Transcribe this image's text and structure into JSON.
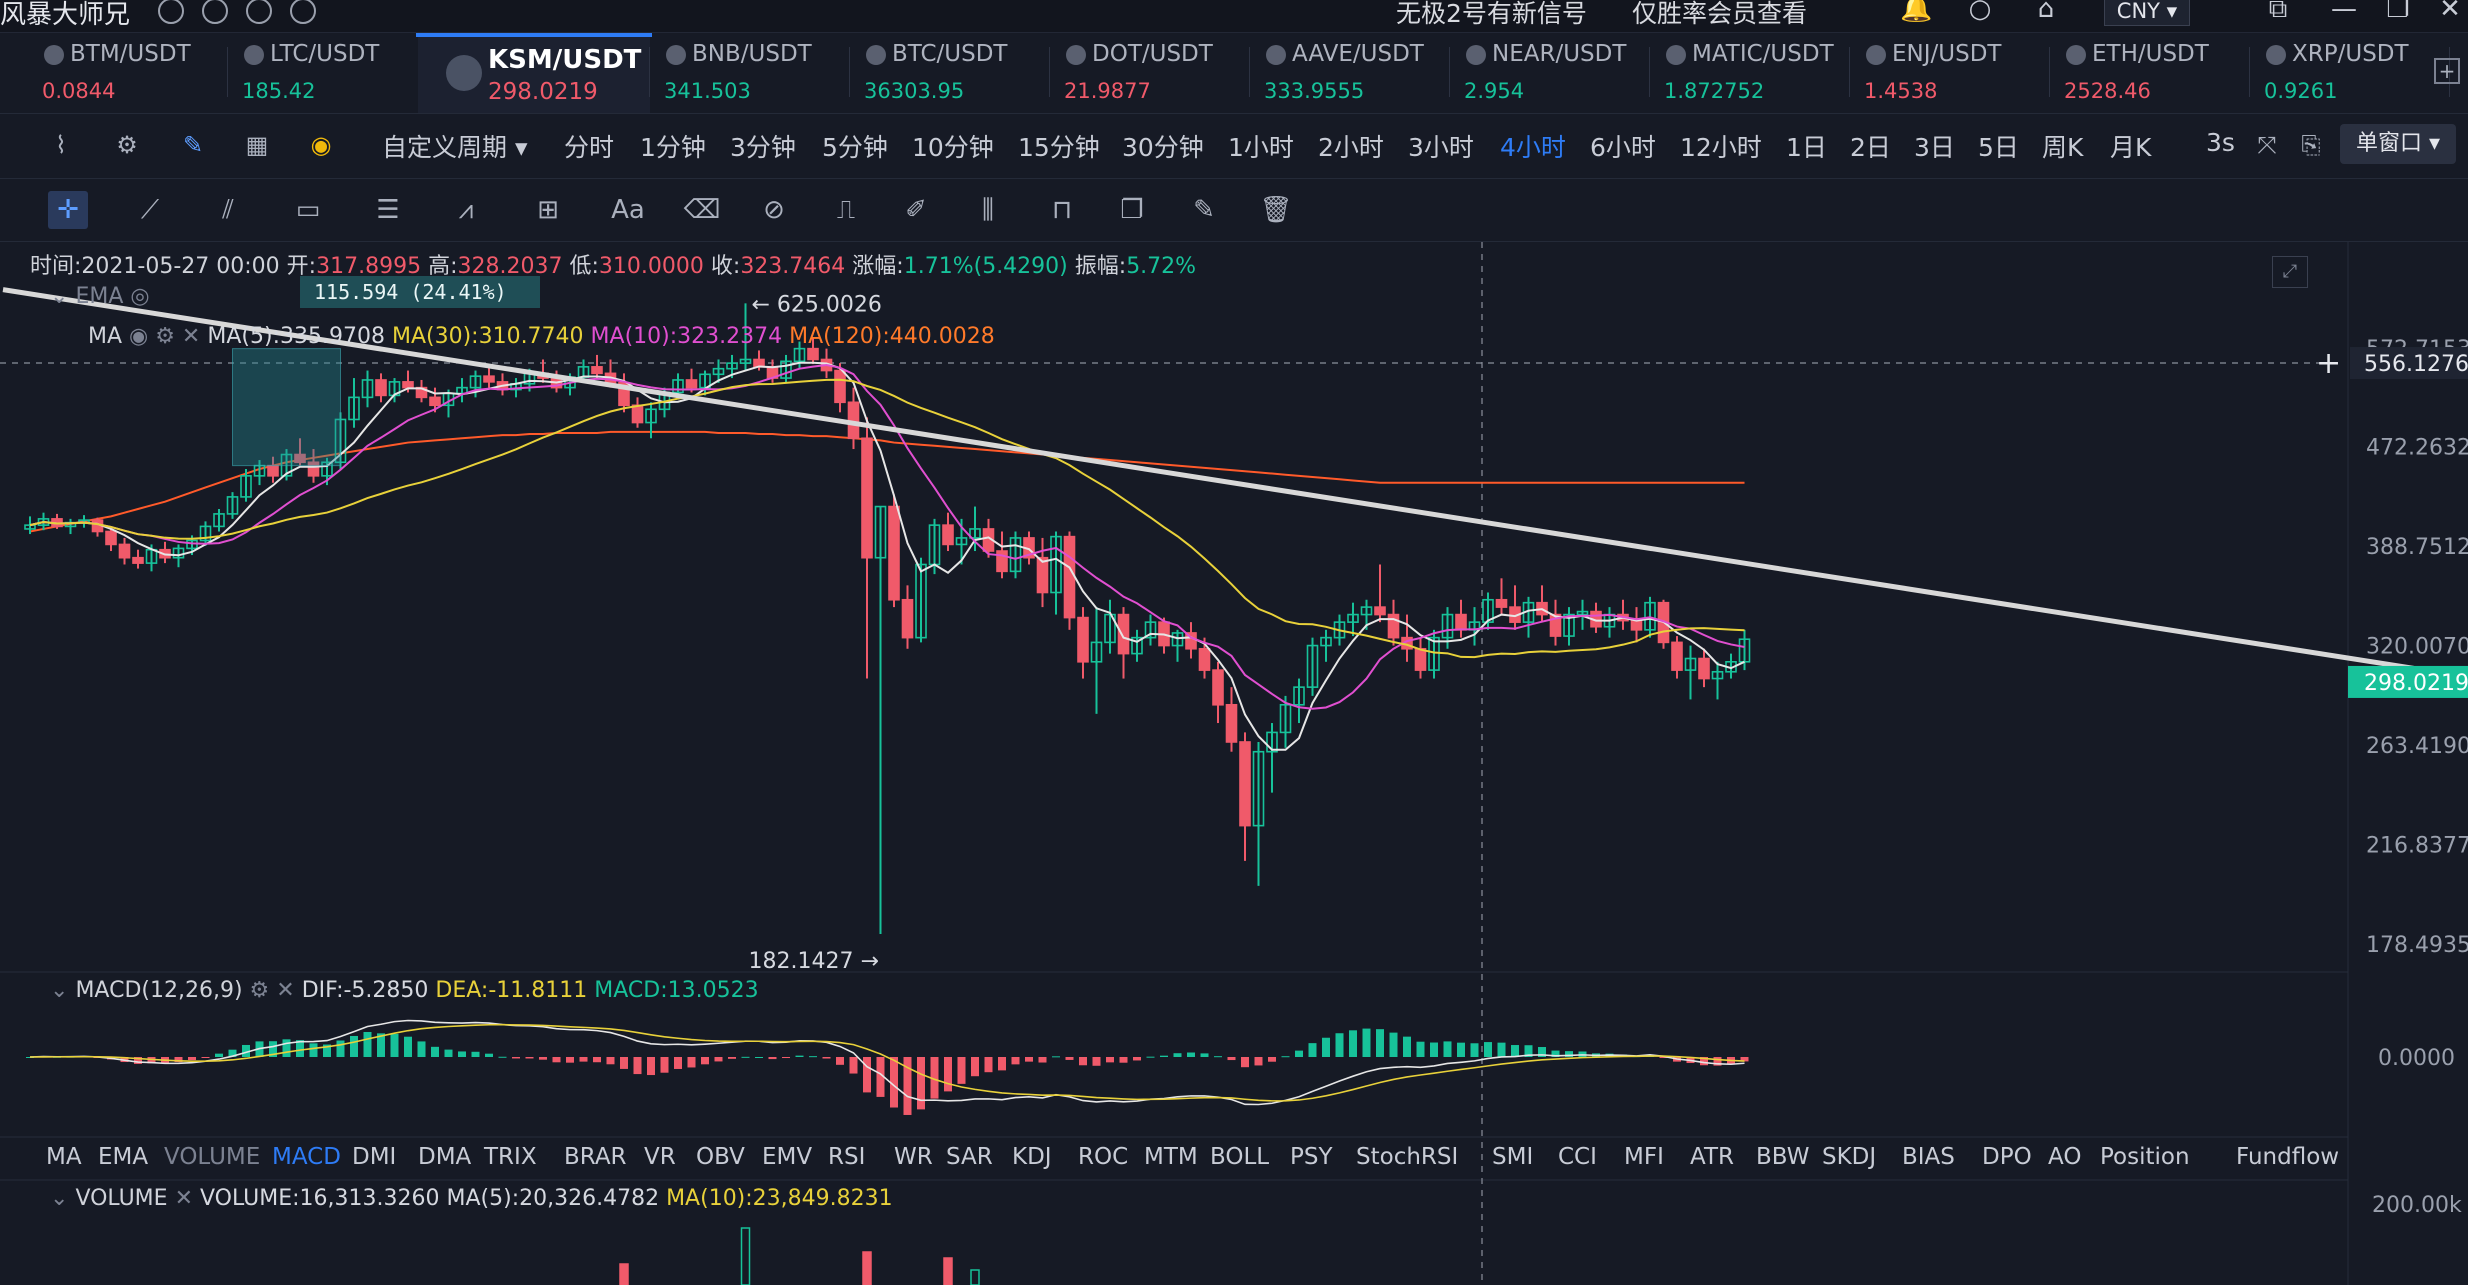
{
  "title_bar": {
    "app_title": "风暴大师兄",
    "promo_signal": "无极2号有新信号",
    "promo_member": "仅胜率会员查看",
    "currency": "CNY ▾"
  },
  "tickers": [
    {
      "symbol": "BTM/USDT",
      "price": "0.0844",
      "color": "#f05a6a"
    },
    {
      "symbol": "LTC/USDT",
      "price": "185.42",
      "color": "#17c29a"
    },
    {
      "symbol": "KSM/USDT",
      "price": "298.0219",
      "color": "#f05a6a",
      "active": true
    },
    {
      "symbol": "BNB/USDT",
      "price": "341.503",
      "color": "#17c29a"
    },
    {
      "symbol": "BTC/USDT",
      "price": "36303.95",
      "color": "#17c29a"
    },
    {
      "symbol": "DOT/USDT",
      "price": "21.9877",
      "color": "#f05a6a"
    },
    {
      "symbol": "AAVE/USDT",
      "price": "333.9555",
      "color": "#17c29a"
    },
    {
      "symbol": "NEAR/USDT",
      "price": "2.954",
      "color": "#17c29a"
    },
    {
      "symbol": "MATIC/USDT",
      "price": "1.872752",
      "color": "#17c29a"
    },
    {
      "symbol": "ENJ/USDT",
      "price": "1.4538",
      "color": "#f05a6a"
    },
    {
      "symbol": "ETH/USDT",
      "price": "2528.46",
      "color": "#f05a6a"
    },
    {
      "symbol": "XRP/USDT",
      "price": "0.9261",
      "color": "#17c29a"
    }
  ],
  "periods": {
    "custom": "自定义周期 ▾",
    "items": [
      "分时",
      "1分钟",
      "3分钟",
      "5分钟",
      "10分钟",
      "15分钟",
      "30分钟",
      "1小时",
      "2小时",
      "3小时",
      "4小时",
      "6小时",
      "12小时",
      "1日",
      "2日",
      "3日",
      "5日",
      "周K",
      "月K"
    ],
    "active": "4小时",
    "interval": "3s",
    "window_mode": "单窗口 ▾"
  },
  "ohlc_info": {
    "time_label": "时间:",
    "time": "2021-05-27 00:00",
    "open_label": "开:",
    "open": "317.8995",
    "high_label": "高:",
    "high": "328.2037",
    "low_label": "低:",
    "low": "310.0000",
    "close_label": "收:",
    "close": "323.7464",
    "change_label": "涨幅:",
    "change": "1.71%(5.4290)",
    "amp_label": "振幅:",
    "amp": "5.72%"
  },
  "overlays": {
    "ema_label": "EMA",
    "ma_label": "MA",
    "ma5": "MA(5):335.9708",
    "ma30": "MA(30):310.7740",
    "ma10": "MA(10):323.2374",
    "ma120": "MA(120):440.0028"
  },
  "measure_box": "115.594 (24.41%)",
  "macd_info": {
    "label": "MACD(12,26,9)",
    "dif": "DIF:-5.2850",
    "dea": "DEA:-11.8111",
    "macd": "MACD:13.0523"
  },
  "volume_info": {
    "label": "VOLUME",
    "vol": "VOLUME:16,313.3260",
    "ma5": "MA(5):20,326.4782",
    "ma10": "MA(10):23,849.8231"
  },
  "indicator_tabs": [
    "MA",
    "EMA",
    "VOLUME",
    "MACD",
    "DMI",
    "DMA",
    "TRIX",
    "BRAR",
    "VR",
    "OBV",
    "EMV",
    "RSI",
    "WR",
    "SAR",
    "KDJ",
    "ROC",
    "MTM",
    "BOLL",
    "PSY",
    "StochRSI",
    "SMI",
    "CCI",
    "MFI",
    "ATR",
    "BBW",
    "SKDJ",
    "BIAS",
    "DPO",
    "AO",
    "Position",
    "Fundflow"
  ],
  "indicator_active": "MACD",
  "chart_data": {
    "type": "candlestick",
    "symbol": "KSM/USDT",
    "interval": "4小时",
    "price_axis": [
      "572.7153",
      "472.2632",
      "388.7512",
      "320.0070",
      "263.4190",
      "216.8377",
      "178.4935"
    ],
    "crosshair_price": "556.1276",
    "last_price": "298.0219",
    "high_marker": "← 625.0026",
    "low_marker": "182.1427 →",
    "macd_axis": [
      "0.0000"
    ],
    "volume_axis": [
      "200.00k"
    ],
    "colors": {
      "up": "#17c29a",
      "down": "#f05a6a",
      "ma5": "#e6e6e6",
      "ma10": "#e04fd0",
      "ma30": "#e8d13a",
      "ma120": "#ff5a2a",
      "trendline": "#d8d8d8"
    },
    "candles": [
      [
        402,
        412,
        398,
        405
      ],
      [
        405,
        415,
        401,
        410
      ],
      [
        410,
        414,
        402,
        404
      ],
      [
        404,
        410,
        398,
        407
      ],
      [
        407,
        413,
        403,
        409
      ],
      [
        409,
        411,
        396,
        400
      ],
      [
        400,
        404,
        385,
        390
      ],
      [
        390,
        395,
        375,
        380
      ],
      [
        380,
        386,
        372,
        376
      ],
      [
        376,
        390,
        370,
        386
      ],
      [
        386,
        392,
        376,
        380
      ],
      [
        380,
        390,
        373,
        387
      ],
      [
        387,
        397,
        382,
        393
      ],
      [
        393,
        408,
        389,
        404
      ],
      [
        404,
        418,
        400,
        414
      ],
      [
        414,
        432,
        410,
        428
      ],
      [
        428,
        452,
        424,
        446
      ],
      [
        446,
        460,
        438,
        455
      ],
      [
        455,
        463,
        440,
        446
      ],
      [
        446,
        470,
        442,
        465
      ],
      [
        465,
        480,
        455,
        458
      ],
      [
        458,
        470,
        440,
        446
      ],
      [
        446,
        462,
        438,
        458
      ],
      [
        458,
        505,
        452,
        498
      ],
      [
        498,
        540,
        490,
        520
      ],
      [
        520,
        548,
        510,
        538
      ],
      [
        538,
        545,
        515,
        522
      ],
      [
        522,
        540,
        515,
        536
      ],
      [
        536,
        548,
        525,
        530
      ],
      [
        530,
        538,
        515,
        520
      ],
      [
        520,
        530,
        505,
        512
      ],
      [
        512,
        528,
        500,
        524
      ],
      [
        524,
        540,
        515,
        530
      ],
      [
        530,
        548,
        520,
        542
      ],
      [
        542,
        552,
        530,
        536
      ],
      [
        536,
        545,
        522,
        528
      ],
      [
        528,
        540,
        520,
        534
      ],
      [
        534,
        550,
        526,
        545
      ],
      [
        545,
        560,
        535,
        540
      ],
      [
        540,
        548,
        525,
        530
      ],
      [
        530,
        545,
        522,
        541
      ],
      [
        541,
        560,
        535,
        552
      ],
      [
        552,
        565,
        540,
        545
      ],
      [
        545,
        560,
        530,
        535
      ],
      [
        535,
        545,
        505,
        512
      ],
      [
        512,
        520,
        490,
        495
      ],
      [
        495,
        515,
        480,
        508
      ],
      [
        508,
        530,
        500,
        525
      ],
      [
        525,
        545,
        518,
        538
      ],
      [
        538,
        550,
        525,
        530
      ],
      [
        530,
        548,
        522,
        544
      ],
      [
        544,
        560,
        535,
        550
      ],
      [
        550,
        565,
        540,
        556
      ],
      [
        556,
        625,
        548,
        560
      ],
      [
        560,
        570,
        548,
        552
      ],
      [
        552,
        560,
        535,
        540
      ],
      [
        540,
        565,
        535,
        558
      ],
      [
        558,
        580,
        550,
        572
      ],
      [
        572,
        585,
        555,
        560
      ],
      [
        560,
        572,
        540,
        548
      ],
      [
        548,
        556,
        505,
        515
      ],
      [
        515,
        530,
        470,
        480
      ],
      [
        480,
        500,
        300,
        380
      ],
      [
        380,
        420,
        182,
        420
      ],
      [
        420,
        430,
        345,
        350
      ],
      [
        350,
        360,
        318,
        325
      ],
      [
        325,
        380,
        322,
        375
      ],
      [
        375,
        410,
        368,
        405
      ],
      [
        405,
        415,
        385,
        390
      ],
      [
        390,
        410,
        375,
        395
      ],
      [
        395,
        420,
        385,
        402
      ],
      [
        402,
        410,
        380,
        385
      ],
      [
        385,
        400,
        365,
        370
      ],
      [
        370,
        400,
        365,
        395
      ],
      [
        395,
        400,
        375,
        380
      ],
      [
        380,
        395,
        345,
        355
      ],
      [
        355,
        400,
        340,
        396
      ],
      [
        396,
        400,
        330,
        338
      ],
      [
        338,
        345,
        300,
        310
      ],
      [
        310,
        345,
        280,
        322
      ],
      [
        322,
        350,
        315,
        340
      ],
      [
        340,
        345,
        300,
        315
      ],
      [
        315,
        330,
        310,
        325
      ],
      [
        325,
        340,
        320,
        335
      ],
      [
        335,
        338,
        315,
        320
      ],
      [
        320,
        330,
        310,
        328
      ],
      [
        328,
        335,
        312,
        318
      ],
      [
        318,
        325,
        300,
        305
      ],
      [
        305,
        310,
        275,
        285
      ],
      [
        285,
        295,
        260,
        265
      ],
      [
        265,
        270,
        210,
        225
      ],
      [
        225,
        265,
        200,
        260
      ],
      [
        260,
        275,
        240,
        270
      ],
      [
        270,
        290,
        262,
        285
      ],
      [
        285,
        300,
        275,
        295
      ],
      [
        295,
        325,
        290,
        320
      ],
      [
        320,
        330,
        310,
        325
      ],
      [
        325,
        340,
        320,
        335
      ],
      [
        335,
        348,
        326,
        340
      ],
      [
        340,
        350,
        330,
        345
      ],
      [
        345,
        375,
        335,
        340
      ],
      [
        340,
        350,
        320,
        325
      ],
      [
        325,
        340,
        310,
        318
      ],
      [
        318,
        325,
        300,
        305
      ],
      [
        305,
        330,
        300,
        325
      ],
      [
        325,
        345,
        318,
        340
      ],
      [
        340,
        350,
        325,
        330
      ],
      [
        330,
        345,
        320,
        335
      ],
      [
        335,
        355,
        330,
        350
      ],
      [
        350,
        365,
        340,
        345
      ],
      [
        345,
        360,
        330,
        335
      ],
      [
        335,
        352,
        325,
        348
      ],
      [
        348,
        360,
        335,
        340
      ],
      [
        340,
        350,
        320,
        326
      ],
      [
        326,
        345,
        320,
        340
      ],
      [
        340,
        350,
        330,
        342
      ],
      [
        342,
        348,
        328,
        332
      ],
      [
        332,
        345,
        325,
        340
      ],
      [
        340,
        350,
        330,
        336
      ],
      [
        336,
        345,
        322,
        330
      ],
      [
        330,
        352,
        325,
        348
      ],
      [
        348,
        350,
        318,
        322
      ],
      [
        322,
        326,
        300,
        305
      ],
      [
        305,
        320,
        288,
        312
      ],
      [
        312,
        318,
        295,
        300
      ],
      [
        300,
        310,
        288,
        304
      ],
      [
        304,
        315,
        300,
        310
      ],
      [
        310,
        330,
        305,
        324
      ]
    ],
    "ma120": [
      400,
      402,
      404,
      406,
      408,
      410,
      412,
      415,
      418,
      421,
      424,
      428,
      432,
      436,
      440,
      444,
      448,
      452,
      455,
      458,
      460,
      462,
      464,
      466,
      468,
      470,
      472,
      474,
      476,
      477,
      478,
      479,
      480,
      481,
      482,
      483,
      483,
      484,
      484,
      485,
      485,
      485,
      485,
      486,
      486,
      486,
      486,
      486,
      486,
      486,
      486,
      485,
      485,
      485,
      484,
      484,
      483,
      483,
      482,
      482,
      481,
      480,
      479,
      478,
      476,
      475,
      474,
      473,
      472,
      471,
      470,
      469,
      468,
      467,
      466,
      465,
      464,
      463,
      462,
      461,
      460,
      459,
      458,
      457,
      456,
      455,
      454,
      453,
      452,
      451,
      450,
      449,
      448,
      447,
      446,
      445,
      444,
      443,
      442,
      441,
      440,
      440,
      440,
      440,
      440,
      440,
      440,
      440,
      440,
      440,
      440,
      440,
      440,
      440,
      440,
      440,
      440,
      440,
      440,
      440,
      440,
      440,
      440,
      440,
      440,
      440,
      440,
      440
    ],
    "volume_spikes": [
      [
        53,
        0.95
      ],
      [
        62,
        0.55
      ],
      [
        44,
        0.35
      ],
      [
        68,
        0.45
      ],
      [
        70,
        0.25
      ]
    ],
    "trendline": {
      "from": [
        -2,
        642
      ],
      "to": [
        205,
        272
      ]
    }
  }
}
